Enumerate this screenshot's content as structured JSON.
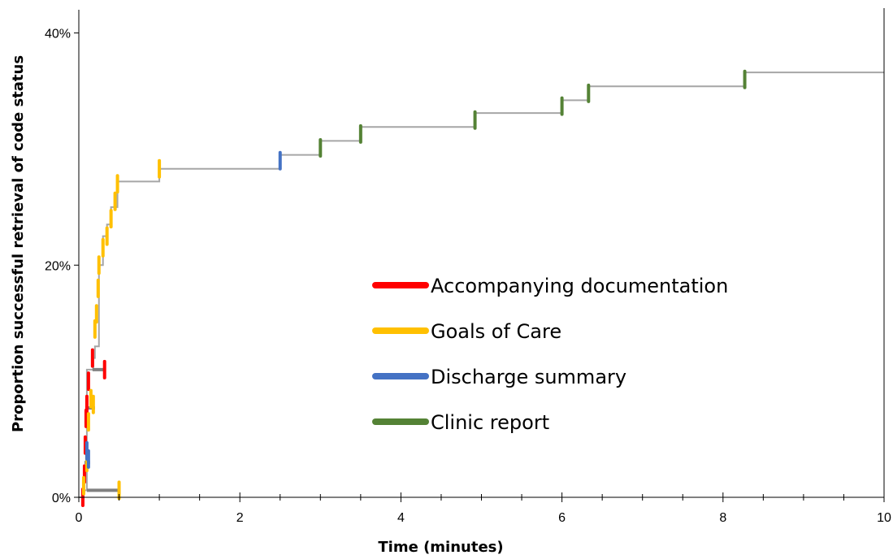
{
  "chart_data": {
    "type": "line",
    "subtype": "step",
    "title": "",
    "xlabel": "Time (minutes)",
    "ylabel": "Proportion successful retrieval of code status",
    "xlim": [
      0,
      10
    ],
    "ylim": [
      0,
      0.42
    ],
    "x_ticks": [
      0,
      2,
      4,
      6,
      8,
      10
    ],
    "x_tick_labels": [
      "0",
      "2",
      "4",
      "6",
      "8",
      "10"
    ],
    "y_ticks": [
      0,
      0.2,
      0.4
    ],
    "y_tick_labels": [
      "0%",
      "20%",
      "40%"
    ],
    "grid": false,
    "legend_position": "center-right",
    "curve_color": "#a6a6a6",
    "step_points": [
      {
        "x": 0,
        "y": 0
      },
      {
        "x": 0.05,
        "y": 0.006
      },
      {
        "x": 0.1,
        "y": 0.11
      },
      {
        "x": 0.18,
        "y": 0.12
      },
      {
        "x": 0.2,
        "y": 0.13
      },
      {
        "x": 0.25,
        "y": 0.2
      },
      {
        "x": 0.3,
        "y": 0.225
      },
      {
        "x": 0.35,
        "y": 0.235
      },
      {
        "x": 0.4,
        "y": 0.25
      },
      {
        "x": 0.48,
        "y": 0.272
      },
      {
        "x": 1.0,
        "y": 0.283
      },
      {
        "x": 2.5,
        "y": 0.295
      },
      {
        "x": 3.0,
        "y": 0.307
      },
      {
        "x": 3.5,
        "y": 0.319
      },
      {
        "x": 4.92,
        "y": 0.331
      },
      {
        "x": 6.0,
        "y": 0.342
      },
      {
        "x": 6.33,
        "y": 0.354
      },
      {
        "x": 8.27,
        "y": 0.366
      },
      {
        "x": 10.0,
        "y": 0.366
      }
    ],
    "series": [
      {
        "name": "Accompanying documentation",
        "color": "#ff0000",
        "events": [
          {
            "x": 0.05,
            "y": 0.0
          },
          {
            "x": 0.07,
            "y": 0.02
          },
          {
            "x": 0.08,
            "y": 0.045
          },
          {
            "x": 0.09,
            "y": 0.068
          },
          {
            "x": 0.1,
            "y": 0.08
          },
          {
            "x": 0.12,
            "y": 0.1
          },
          {
            "x": 0.17,
            "y": 0.12
          },
          {
            "x": 0.32,
            "y": 0.11
          }
        ]
      },
      {
        "name": "Goals of Care",
        "color": "#ffc000",
        "events": [
          {
            "x": 0.06,
            "y": 0.01
          },
          {
            "x": 0.1,
            "y": 0.03
          },
          {
            "x": 0.12,
            "y": 0.065
          },
          {
            "x": 0.15,
            "y": 0.085
          },
          {
            "x": 0.18,
            "y": 0.08
          },
          {
            "x": 0.2,
            "y": 0.145
          },
          {
            "x": 0.22,
            "y": 0.158
          },
          {
            "x": 0.24,
            "y": 0.18
          },
          {
            "x": 0.25,
            "y": 0.2
          },
          {
            "x": 0.3,
            "y": 0.215
          },
          {
            "x": 0.35,
            "y": 0.225
          },
          {
            "x": 0.4,
            "y": 0.24
          },
          {
            "x": 0.45,
            "y": 0.255
          },
          {
            "x": 0.48,
            "y": 0.27
          },
          {
            "x": 0.5,
            "y": 0.006
          },
          {
            "x": 1.0,
            "y": 0.283
          }
        ]
      },
      {
        "name": "Discharge summary",
        "color": "#4472c4",
        "events": [
          {
            "x": 0.1,
            "y": 0.04
          },
          {
            "x": 0.12,
            "y": 0.033
          },
          {
            "x": 2.5,
            "y": 0.29
          }
        ]
      },
      {
        "name": "Clinic report",
        "color": "#548235",
        "events": [
          {
            "x": 3.0,
            "y": 0.301
          },
          {
            "x": 3.5,
            "y": 0.313
          },
          {
            "x": 4.92,
            "y": 0.325
          },
          {
            "x": 6.0,
            "y": 0.337
          },
          {
            "x": 6.33,
            "y": 0.348
          },
          {
            "x": 8.27,
            "y": 0.36
          }
        ]
      }
    ],
    "gray_segments": [
      {
        "x0": 0.1,
        "x1": 0.5,
        "y": 0.006
      },
      {
        "x0": 0.08,
        "x1": 0.2,
        "y": 0.077
      },
      {
        "x0": 0.17,
        "x1": 0.32,
        "y": 0.11
      },
      {
        "x0": 0.07,
        "x1": 0.14,
        "y": 0.03
      },
      {
        "x0": 0.07,
        "x1": 0.13,
        "y": 0.065
      }
    ]
  }
}
